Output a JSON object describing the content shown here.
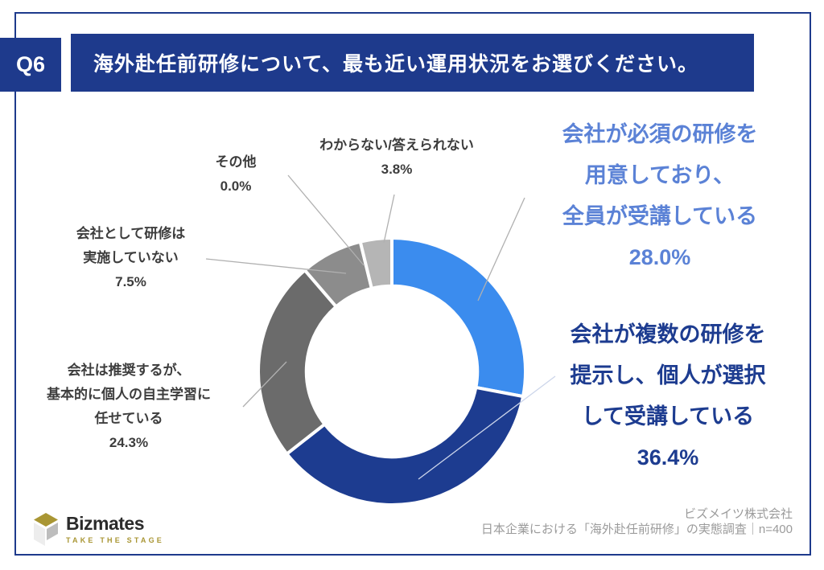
{
  "header": {
    "badge": "Q6",
    "title": "海外赴任前研修について、最も近い運用状況をお選びください。"
  },
  "chart_data": {
    "type": "pie",
    "subtype": "donut",
    "title": "海外赴任前研修について、最も近い運用状況をお選びください。",
    "unit": "%",
    "start_angle": "top",
    "direction": "clockwise",
    "inner_radius_ratio": 0.64,
    "segments": [
      {
        "label": "会社が必須の研修を用意しており、全員が受講している",
        "value": 28.0,
        "color": "#3b8cee"
      },
      {
        "label": "会社が複数の研修を提示し、個人が選択して受講している",
        "value": 36.4,
        "color": "#1d3c90"
      },
      {
        "label": "会社は推奨するが、基本的に個人の自主学習に任せている",
        "value": 24.3,
        "color": "#6b6b6b"
      },
      {
        "label": "会社として研修は実施していない",
        "value": 7.5,
        "color": "#8c8c8c"
      },
      {
        "label": "その他",
        "value": 0.0,
        "color": "#c0c0c0"
      },
      {
        "label": "わからない/答えられない",
        "value": 3.8,
        "color": "#b5b5b5"
      }
    ]
  },
  "labels": {
    "unknown": {
      "text": "わからない/答えられない\n3.8%",
      "color": "#3d3d3d"
    },
    "other": {
      "text": "その他\n0.0%",
      "color": "#3d3d3d"
    },
    "not_conducted": {
      "text": "会社として研修は\n実施していない\n7.5%",
      "color": "#3d3d3d"
    },
    "self_study": {
      "text": "会社は推奨するが、\n基本的に個人の自主学習に\n任せている\n24.3%",
      "color": "#3d3d3d"
    },
    "mandatory": {
      "text": "会社が必須の研修を\n用意しており、\n全員が受講している\n28.0%",
      "color": "#5b82d6"
    },
    "multiple": {
      "text": "会社が複数の研修を\n提示し、個人が選択\nして受講している\n36.4%",
      "color": "#1d3c90"
    }
  },
  "footer": {
    "logo_name": "Bizmates",
    "logo_tagline": "TAKE THE STAGE",
    "source": "ビズメイツ株式会社\n日本企業における「海外赴任前研修」の実態調査｜n=400"
  },
  "colors": {
    "accent_navy": "#1e3a8c",
    "frame_border": "#1e3a8c",
    "leader_line": "#b0b0b0",
    "logo_gold": "#a99634"
  }
}
